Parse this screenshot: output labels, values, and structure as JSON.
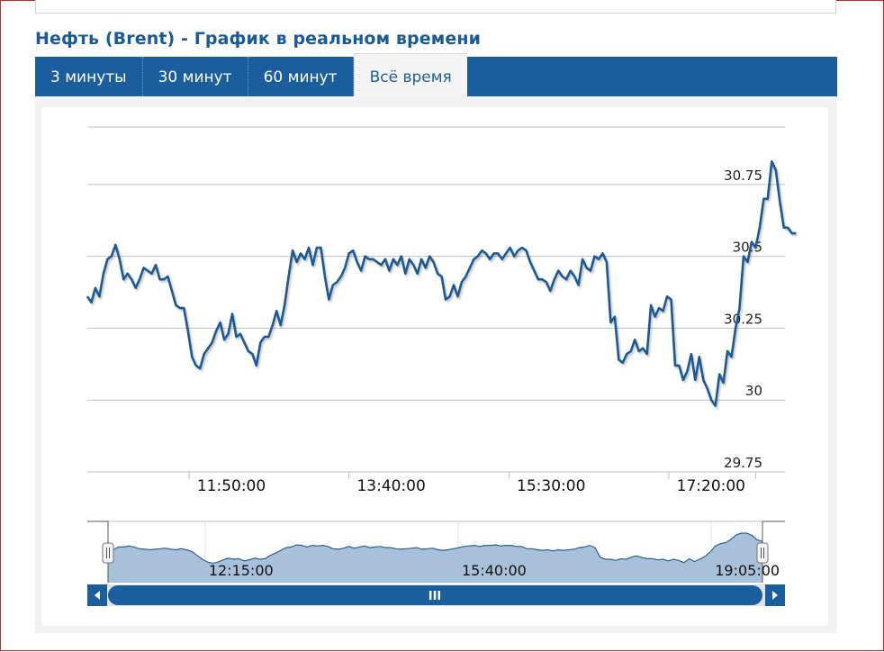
{
  "page": {
    "title": "Нефть (Brent) - График в реальном времени"
  },
  "tabs": [
    {
      "label": "3 минуты",
      "active": false
    },
    {
      "label": "30 минут",
      "active": false
    },
    {
      "label": "60 минут",
      "active": false
    },
    {
      "label": "Всё время",
      "active": true
    }
  ],
  "colors": {
    "tab_bar": "#1b5e9e",
    "title": "#1a5a96",
    "series_line": "#1f5a93",
    "navigator_fill": "#a9c0da",
    "navigator_stroke": "#2e5f91",
    "scrollbar": "#1b5e9e"
  },
  "chart_data": {
    "type": "line",
    "title": "",
    "xlabel": "",
    "ylabel": "",
    "ylim": [
      29.75,
      30.95
    ],
    "y_ticks": [
      {
        "value": 30.75,
        "label": "30.75"
      },
      {
        "value": 30.5,
        "label": "30.5"
      },
      {
        "value": 30.25,
        "label": "30.25"
      },
      {
        "value": 30,
        "label": "30"
      },
      {
        "value": 29.75,
        "label": "29.75"
      }
    ],
    "x_range_minutes": [
      640,
      1120
    ],
    "x_ticks": [
      {
        "label": "11:50:00",
        "minute": 710
      },
      {
        "label": "13:40:00",
        "minute": 820
      },
      {
        "label": "15:30:00",
        "minute": 930
      },
      {
        "label": "17:20:00",
        "minute": 1040
      }
    ],
    "grid": true,
    "legend": "none",
    "series": [
      {
        "x_start_minute": 640,
        "x_step_minutes": 2.77,
        "values": [
          30.36,
          30.34,
          30.39,
          30.36,
          30.44,
          30.49,
          30.5,
          30.54,
          30.49,
          30.42,
          30.44,
          30.42,
          30.39,
          30.42,
          30.46,
          30.45,
          30.44,
          30.47,
          30.42,
          30.42,
          30.43,
          30.38,
          30.33,
          30.32,
          30.32,
          30.24,
          30.15,
          30.12,
          30.11,
          30.16,
          30.18,
          30.2,
          30.24,
          30.27,
          30.21,
          30.23,
          30.3,
          30.22,
          30.23,
          30.2,
          30.17,
          30.16,
          30.12,
          30.2,
          30.22,
          30.22,
          30.26,
          30.31,
          30.26,
          30.33,
          30.43,
          30.52,
          30.48,
          30.51,
          30.49,
          30.53,
          30.47,
          30.53,
          30.53,
          30.43,
          30.35,
          30.4,
          30.41,
          30.43,
          30.46,
          30.51,
          30.52,
          30.48,
          30.45,
          30.5,
          30.49,
          30.49,
          30.48,
          30.47,
          30.49,
          30.45,
          30.49,
          30.47,
          30.5,
          30.44,
          30.49,
          30.47,
          30.44,
          30.49,
          30.46,
          30.5,
          30.48,
          30.44,
          30.43,
          30.35,
          30.36,
          30.4,
          30.36,
          30.41,
          30.43,
          30.46,
          30.49,
          30.5,
          30.52,
          30.51,
          30.49,
          30.51,
          30.51,
          30.49,
          30.51,
          30.53,
          30.5,
          30.52,
          30.53,
          30.52,
          30.48,
          30.45,
          30.42,
          30.42,
          30.41,
          30.38,
          30.42,
          30.45,
          30.43,
          30.42,
          30.45,
          30.43,
          30.4,
          30.49,
          30.46,
          30.45,
          30.5,
          30.49,
          30.51,
          30.48,
          30.27,
          30.29,
          30.14,
          30.13,
          30.16,
          30.17,
          30.21,
          30.17,
          30.18,
          30.16,
          30.33,
          30.29,
          30.32,
          30.31,
          30.36,
          30.35,
          30.12,
          30.12,
          30.07,
          30.1,
          30.16,
          30.07,
          30.15,
          30.07,
          30.04,
          30,
          29.98,
          30.09,
          30.06,
          30.17,
          30.15,
          30.25,
          30.32,
          30.5,
          30.48,
          30.55,
          30.53,
          30.6,
          30.7,
          30.7,
          30.83,
          30.8,
          30.69,
          30.6,
          30.6,
          30.58,
          30.58
        ]
      }
    ]
  },
  "navigator": {
    "x_ticks": [
      {
        "label": "12:15:00",
        "minute": 735
      },
      {
        "label": "15:40:00",
        "minute": 940
      },
      {
        "label": "19:05:00",
        "minute": 1145
      }
    ],
    "x_range_minutes": [
      620,
      1150
    ],
    "ylim": [
      29.85,
      30.95
    ],
    "values": [
      30.38,
      30.44,
      30.49,
      30.49,
      30.51,
      30.49,
      30.46,
      30.45,
      30.44,
      30.45,
      30.46,
      30.47,
      30.45,
      30.44,
      30.46,
      30.44,
      30.41,
      30.34,
      30.27,
      30.22,
      30.2,
      30.22,
      30.26,
      30.29,
      30.27,
      30.28,
      30.24,
      30.26,
      30.29,
      30.27,
      30.28,
      30.34,
      30.38,
      30.43,
      30.48,
      30.49,
      30.53,
      30.52,
      30.49,
      30.52,
      30.51,
      30.52,
      30.5,
      30.46,
      30.45,
      30.47,
      30.5,
      30.47,
      30.49,
      30.51,
      30.48,
      30.49,
      30.5,
      30.48,
      30.48,
      30.46,
      30.45,
      30.46,
      30.47,
      30.48,
      30.45,
      30.46,
      30.47,
      30.44,
      30.43,
      30.44,
      30.46,
      30.48,
      30.5,
      30.51,
      30.52,
      30.5,
      30.52,
      30.52,
      30.53,
      30.51,
      30.52,
      30.52,
      30.5,
      30.5,
      30.46,
      30.46,
      30.44,
      30.43,
      30.44,
      30.42,
      30.44,
      30.43,
      30.44,
      30.45,
      30.48,
      30.49,
      30.52,
      30.48,
      30.31,
      30.27,
      30.27,
      30.25,
      30.28,
      30.27,
      30.31,
      30.33,
      30.3,
      30.28,
      30.28,
      30.26,
      30.27,
      30.24,
      30.27,
      30.25,
      30.21,
      30.28,
      30.23,
      30.27,
      30.32,
      30.4,
      30.51,
      30.55,
      30.57,
      30.63,
      30.71,
      30.74,
      30.74,
      30.7,
      30.62,
      30.59
    ]
  },
  "scrollbar": {
    "grip": "III"
  }
}
